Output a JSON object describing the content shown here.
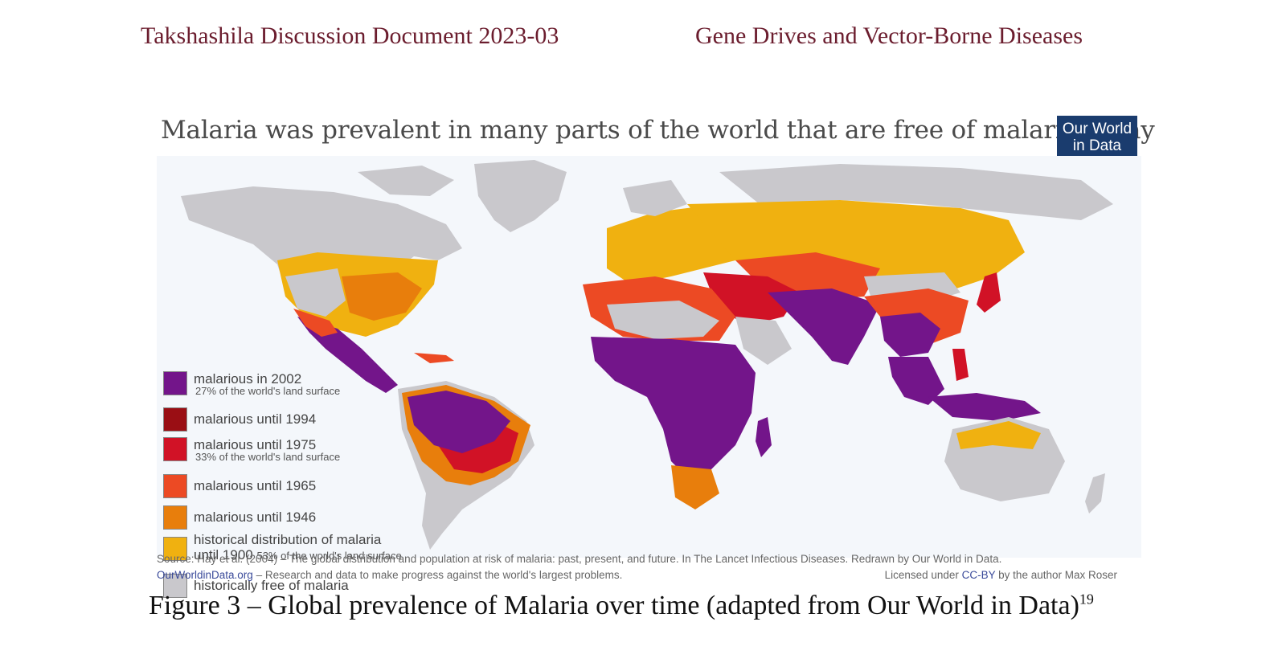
{
  "header": {
    "left": "Takshashila Discussion Document 2023-03",
    "right": "Gene Drives and Vector-Borne Diseases"
  },
  "figure": {
    "title": "Malaria was prevalent in many parts of the world that are free of malaria today",
    "logo_line1": "Our World",
    "logo_line2": "in Data",
    "legend": [
      {
        "label": "malarious in 2002",
        "note": "27% of the world's land surface",
        "color": "#73158a"
      },
      {
        "label": "malarious until 1994",
        "note": "",
        "color": "#9a0e14"
      },
      {
        "label": "malarious until 1975",
        "note": "33% of the world's land surface",
        "color": "#d11226"
      },
      {
        "label": "malarious until 1965",
        "note": "",
        "color": "#ec4a24"
      },
      {
        "label": "malarious until 1946",
        "note": "",
        "color": "#e87e0c"
      },
      {
        "label": "historical distribution of malaria",
        "label2": "until 1900",
        "note": "53% of the world's land surface",
        "color": "#f0b110"
      },
      {
        "label": "historically free of malaria",
        "note": "",
        "color": "#c9c8cc"
      }
    ],
    "source_line": "Source: Hay et al. (2004) – The global distribution and population at risk of malaria: past, present, and future. In The Lancet Infectious Diseases. Redrawn by Our World in Data.",
    "site_link": "OurWorldinData.org",
    "site_tagline": " – Research and data to make progress against the world's largest problems.",
    "license_prefix": "Licensed under ",
    "license_link": "CC-BY",
    "license_suffix": " by the author Max Roser"
  },
  "caption": {
    "text": "Figure 3 – Global prevalence of Malaria over time (adapted from Our World in Data)",
    "footnote": "19"
  }
}
